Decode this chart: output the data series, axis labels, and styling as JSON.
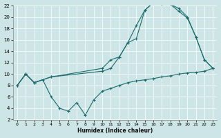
{
  "xlabel": "Humidex (Indice chaleur)",
  "xlim": [
    -0.5,
    23.5
  ],
  "ylim": [
    2,
    22
  ],
  "xticks": [
    0,
    1,
    2,
    3,
    4,
    5,
    6,
    7,
    8,
    9,
    10,
    11,
    12,
    13,
    14,
    15,
    16,
    17,
    18,
    19,
    20,
    21,
    22,
    23
  ],
  "yticks": [
    2,
    4,
    6,
    8,
    10,
    12,
    14,
    16,
    18,
    20,
    22
  ],
  "bg_color": "#cde5e7",
  "line_color": "#1a6b6b",
  "line1_x": [
    0,
    1,
    2,
    3,
    4,
    5,
    6,
    7,
    8,
    9,
    10,
    11,
    12,
    13,
    14,
    15,
    16,
    17,
    18,
    19,
    20,
    21,
    22,
    23
  ],
  "line1_y": [
    8,
    10,
    8.5,
    9,
    6,
    4,
    3.5,
    5,
    2.8,
    5.5,
    7.0,
    7.5,
    8.0,
    8.5,
    8.8,
    9.0,
    9.2,
    9.5,
    9.7,
    10.0,
    10.2,
    10.3,
    10.5,
    11.0
  ],
  "line2_x": [
    0,
    1,
    2,
    4,
    10,
    11,
    12,
    13,
    14,
    15,
    16,
    17,
    18,
    19,
    20,
    21,
    22,
    23
  ],
  "line2_y": [
    8,
    10,
    8.5,
    9.5,
    10.5,
    11.0,
    13.0,
    15.5,
    16.2,
    21.2,
    22.5,
    22.2,
    22.2,
    21.0,
    19.8,
    16.5,
    12.5,
    11.0
  ],
  "line3_x": [
    0,
    1,
    2,
    4,
    10,
    11,
    12,
    13,
    14,
    15,
    16,
    17,
    18,
    19,
    20,
    21,
    22,
    23
  ],
  "line3_y": [
    8,
    10,
    8.5,
    9.5,
    11.0,
    12.5,
    13.0,
    15.5,
    18.5,
    21.2,
    22.5,
    22.2,
    22.2,
    21.5,
    20.0,
    16.5,
    12.5,
    11.0
  ]
}
